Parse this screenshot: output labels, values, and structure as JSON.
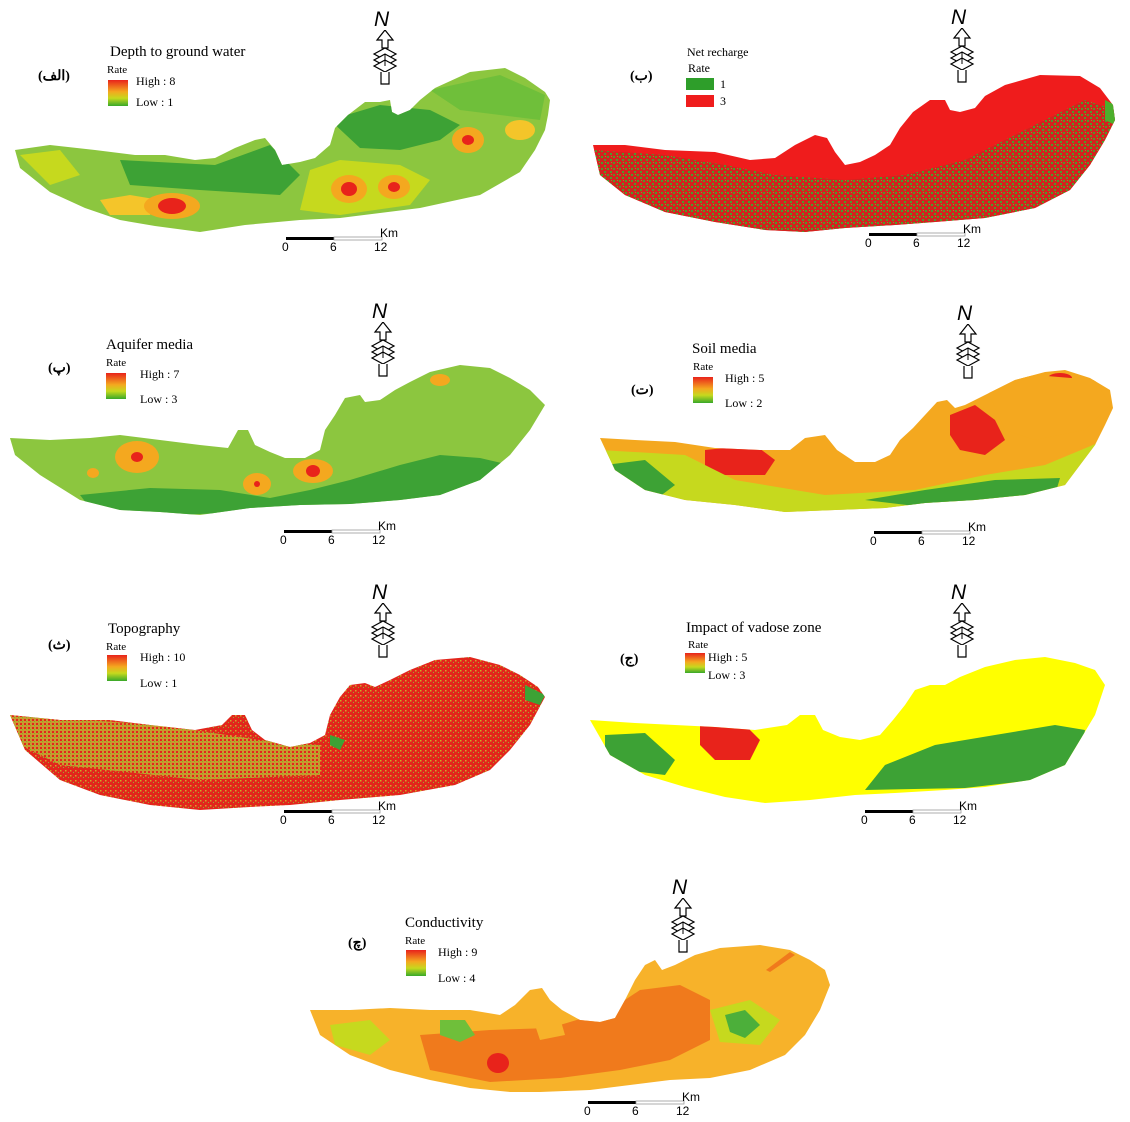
{
  "maps": [
    {
      "id": "depth",
      "title": "Depth to ground water",
      "rate_label": "Rate",
      "legend_type": "gradient",
      "high_label": "High : 8",
      "low_label": "Low : 1",
      "panel_label": "(الف)"
    },
    {
      "id": "recharge",
      "title": "Net recharge",
      "rate_label": "Rate",
      "legend_type": "classes",
      "classes": [
        {
          "label": "1",
          "color": "#2e9e2a"
        },
        {
          "label": "3",
          "color": "#ef1c1c"
        }
      ],
      "panel_label": "(ب)"
    },
    {
      "id": "aquifer",
      "title": "Aquifer media",
      "rate_label": "Rate",
      "legend_type": "gradient",
      "high_label": "High : 7",
      "low_label": "Low : 3",
      "panel_label": "(پ)"
    },
    {
      "id": "soil",
      "title": "Soil media",
      "rate_label": "Rate",
      "legend_type": "gradient",
      "high_label": "High : 5",
      "low_label": "Low : 2",
      "panel_label": "(ت)"
    },
    {
      "id": "topo",
      "title": "Topography",
      "rate_label": "Rate",
      "legend_type": "gradient",
      "high_label": "High : 10",
      "low_label": "Low : 1",
      "panel_label": "(ث)"
    },
    {
      "id": "vadose",
      "title": "Impact of vadose zone",
      "rate_label": "Rate",
      "legend_type": "gradient",
      "high_label": "High : 5",
      "low_label": "Low : 3",
      "panel_label": "(ج)"
    },
    {
      "id": "cond",
      "title": "Conductivity",
      "rate_label": "Rate",
      "legend_type": "gradient",
      "high_label": "High : 9",
      "low_label": "Low : 4",
      "panel_label": "(چ)"
    }
  ],
  "north_label": "N",
  "scale_unit": "Km",
  "scale_ticks": [
    "0",
    "6",
    "12"
  ],
  "colors": {
    "red": "#e8231b",
    "orange": "#f4a81f",
    "dark_orange": "#f07a1c",
    "yellow_green": "#c6d91e",
    "light_green": "#8cc63f",
    "green": "#3da235",
    "yellow": "#ffff00"
  }
}
